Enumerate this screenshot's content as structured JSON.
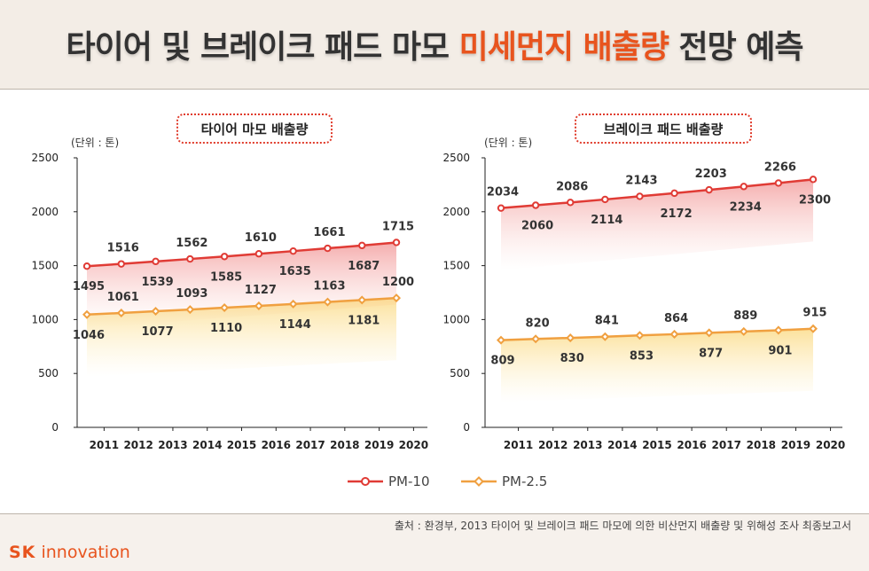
{
  "header": {
    "title_prefix": "타이어 및 브레이크 패드 마모 ",
    "title_highlight": "미세먼지 배출량",
    "title_suffix": " 전망 예측",
    "accent_color": "#e8541e"
  },
  "charts": {
    "tire": {
      "title": "타이어 마모 배출량",
      "unit": "(단위 : 톤)"
    },
    "brake": {
      "title": "브레이크 패드 배출량",
      "unit": "(단위 : 톤)"
    }
  },
  "legend": {
    "pm10": "PM-10",
    "pm25": "PM-2.5",
    "pm10_color": "#e03b35",
    "pm25_color": "#f0a040"
  },
  "footer": {
    "source": "출처 : 환경부, 2013 타이어 및 브레이크 패드 마모에 의한 비산먼지 배출량 및 위해성 조사 최종보고서",
    "logo_sk": "SK",
    "logo_rest": " innovation"
  },
  "chart_data": [
    {
      "type": "line",
      "title": "타이어 마모 배출량",
      "ylabel": "(단위 : 톤)",
      "categories": [
        "2011",
        "2012",
        "2013",
        "2014",
        "2015",
        "2016",
        "2017",
        "2018",
        "2019",
        "2020"
      ],
      "yticks": [
        0,
        500,
        1000,
        1500,
        2000,
        2500
      ],
      "ylim": [
        0,
        2500
      ],
      "series": [
        {
          "name": "PM-10",
          "values": [
            1495,
            1516,
            1539,
            1562,
            1585,
            1610,
            1635,
            1661,
            1687,
            1715
          ]
        },
        {
          "name": "PM-2.5",
          "values": [
            1046,
            1061,
            1077,
            1093,
            1110,
            1127,
            1144,
            1163,
            1181,
            1200
          ]
        }
      ]
    },
    {
      "type": "line",
      "title": "브레이크 패드 배출량",
      "ylabel": "(단위 : 톤)",
      "categories": [
        "2011",
        "2012",
        "2013",
        "2014",
        "2015",
        "2016",
        "2017",
        "2018",
        "2019",
        "2020"
      ],
      "yticks": [
        0,
        500,
        1000,
        1500,
        2000,
        2500
      ],
      "ylim": [
        0,
        2500
      ],
      "series": [
        {
          "name": "PM-10",
          "values": [
            2034,
            2060,
            2086,
            2114,
            2143,
            2172,
            2203,
            2234,
            2266,
            2300
          ]
        },
        {
          "name": "PM-2.5",
          "values": [
            809,
            820,
            830,
            841,
            853,
            864,
            877,
            889,
            901,
            915
          ]
        }
      ]
    }
  ]
}
